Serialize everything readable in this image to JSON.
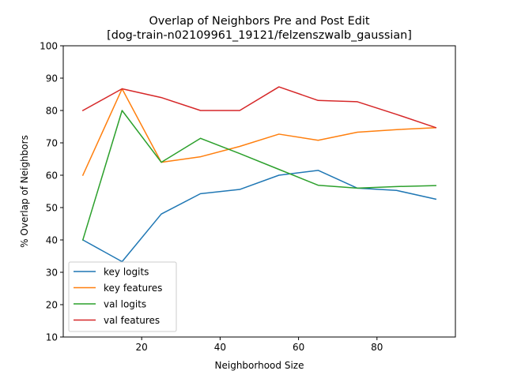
{
  "chart_data": {
    "type": "line",
    "title_line1": "Overlap of Neighbors Pre and Post Edit",
    "title_line2": "[dog-train-n02109961_19121/felzenszwalb_gaussian]",
    "xlabel": "Neighborhood Size",
    "ylabel": "% Overlap of Neighbors",
    "xlim": [
      0,
      100
    ],
    "ylim": [
      10,
      100
    ],
    "x_ticks": [
      20,
      40,
      60,
      80
    ],
    "y_ticks": [
      10,
      20,
      30,
      40,
      50,
      60,
      70,
      80,
      90,
      100
    ],
    "x": [
      5,
      15,
      25,
      35,
      45,
      55,
      65,
      75,
      85,
      95
    ],
    "grid": false,
    "legend_position": "lower-left",
    "series": [
      {
        "name": "key logits",
        "color": "#1f77b4",
        "values": [
          40.0,
          33.3,
          48.0,
          54.3,
          55.6,
          60.0,
          61.5,
          56.0,
          55.3,
          52.6
        ]
      },
      {
        "name": "key features",
        "color": "#ff7f0e",
        "values": [
          60.0,
          86.7,
          64.0,
          65.7,
          68.9,
          72.7,
          70.8,
          73.3,
          74.1,
          74.7
        ]
      },
      {
        "name": "val logits",
        "color": "#2ca02c",
        "values": [
          40.0,
          80.0,
          64.0,
          71.4,
          66.7,
          61.8,
          56.9,
          56.0,
          56.5,
          56.8
        ]
      },
      {
        "name": "val features",
        "color": "#d62728",
        "values": [
          80.0,
          86.7,
          84.0,
          80.0,
          80.0,
          87.3,
          83.1,
          82.7,
          78.8,
          74.7
        ]
      }
    ]
  }
}
